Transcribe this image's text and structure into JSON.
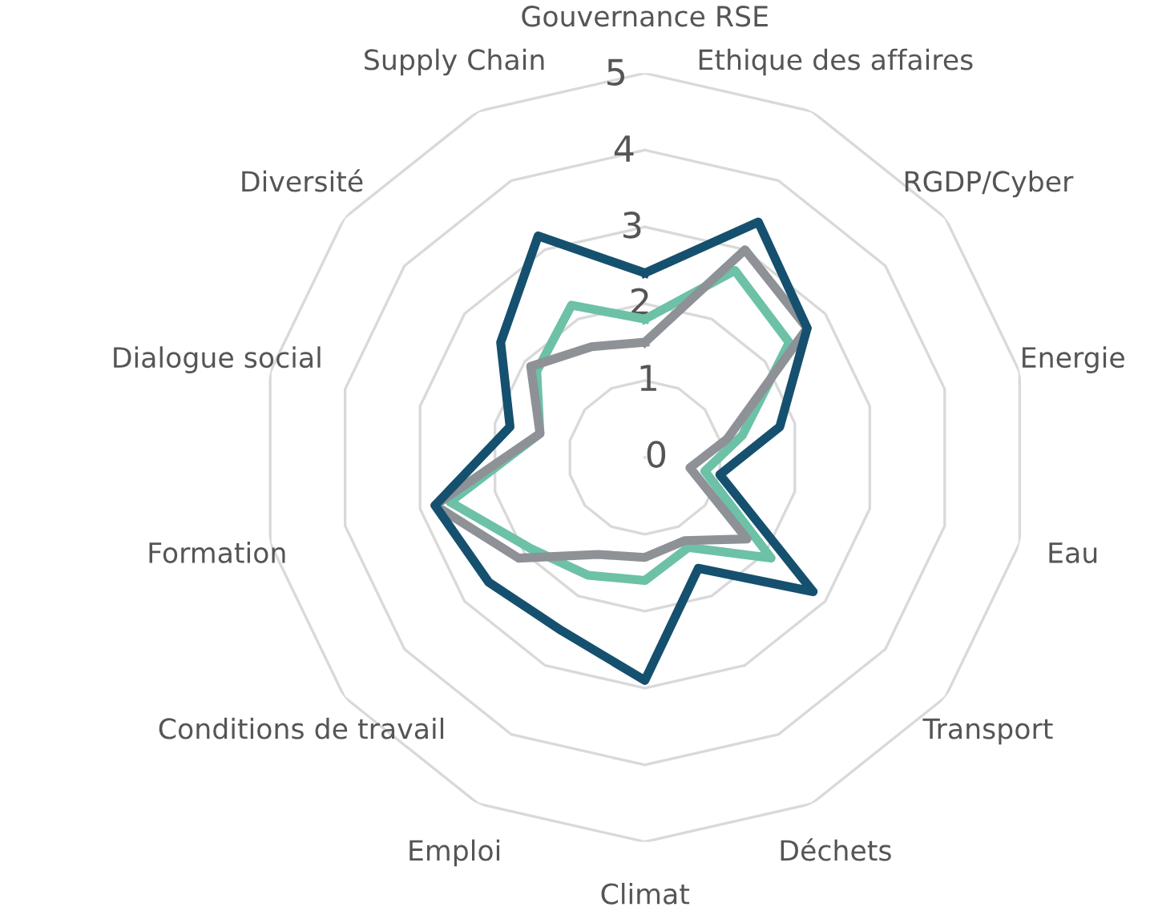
{
  "chart_data": {
    "type": "radar",
    "categories": [
      "Gouvernance RSE",
      "Ethique des affaires",
      "RGDP/Cyber",
      "Energie",
      "Eau",
      "Transport",
      "Déchets",
      "Climat",
      "Emploi",
      "Conditions de travail",
      "Formation",
      "Dialogue social",
      "Diversité",
      "Supply Chain"
    ],
    "series": [
      {
        "color": "#6cc1a7",
        "values": [
          1.8,
          2.7,
          2.4,
          1.3,
          0.8,
          2.1,
          1.3,
          1.6,
          1.7,
          1.9,
          2.6,
          1.4,
          1.8,
          2.2
        ]
      },
      {
        "color": "#8e9196",
        "values": [
          1.5,
          3.0,
          2.7,
          1.1,
          0.6,
          1.7,
          1.2,
          1.3,
          1.4,
          2.1,
          2.8,
          1.4,
          1.9,
          1.6
        ]
      },
      {
        "color": "#15506f",
        "values": [
          2.4,
          3.4,
          2.7,
          1.8,
          1.0,
          2.8,
          1.6,
          2.9,
          2.5,
          2.6,
          2.8,
          1.8,
          2.4,
          3.2
        ]
      }
    ],
    "ylim": [
      0,
      5
    ],
    "yticks": [
      0,
      1,
      2,
      3,
      4,
      5
    ],
    "grid": true,
    "legend": false,
    "marker": "none",
    "line_style": "solid"
  }
}
